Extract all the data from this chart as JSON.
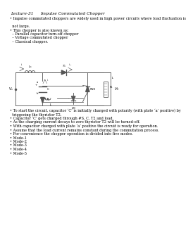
{
  "title_left": "Lecture-31",
  "title_right": "Impulse Commutated Chopper",
  "background_color": "#ffffff",
  "text_color": "#000000",
  "font_size_title": 4.2,
  "font_size_body": 3.6,
  "font_size_circuit": 3.0,
  "bullet_lines": [
    "• Impulse commutated choppers are widely used in high power circuits where load fluctuation is not large.",
    "• This chopper is also known as:",
    "  – Parallel capacitor turn-off chopper",
    "  – Voltage commutated chopper",
    "  – Classical chopper."
  ],
  "bullet_lines2": [
    "• To start the circuit, capacitor ‘C’ is initially charged with polarity (with plate ‘a’ positive) by triggering the thyristor T2.",
    "• Capacitor ‘C’ gets charged through #S, C, T2 and load.",
    "• As the charging current decays to zero thyristor T2 will be turned-off.",
    "• With capacitor charged with plate ‘a’ positive the circuit is ready for operation.",
    "• Assume that the load current remains constant during the commutation process.",
    "• For convenience the chopper operation is divided into five modes.",
    "• Mode-1",
    "• Mode-2",
    "• Mode-3",
    "• Mode-4",
    "• Mode-5"
  ]
}
